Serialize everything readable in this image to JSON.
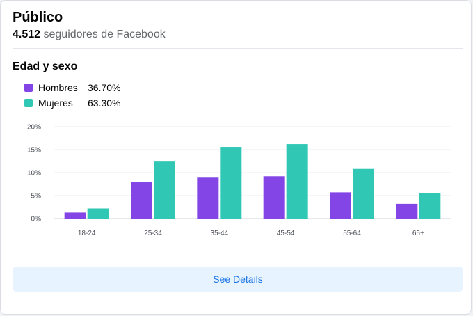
{
  "header": {
    "title": "Público",
    "follower_count": "4.512",
    "follower_suffix": "seguidores de Facebook"
  },
  "section": {
    "title": "Edad y sexo"
  },
  "legend": [
    {
      "label": "Hombres",
      "value": "36.70%",
      "color": "#8345e6"
    },
    {
      "label": "Mujeres",
      "value": "63.30%",
      "color": "#30c7b5"
    }
  ],
  "chart_data": {
    "type": "bar",
    "categories": [
      "18-24",
      "25-34",
      "35-44",
      "45-54",
      "55-64",
      "65+"
    ],
    "series": [
      {
        "name": "Hombres",
        "color": "#8345e6",
        "values": [
          1.3,
          7.9,
          8.9,
          9.2,
          5.7,
          3.2
        ]
      },
      {
        "name": "Mujeres",
        "color": "#30c7b5",
        "values": [
          2.2,
          12.4,
          15.6,
          16.2,
          10.8,
          5.5
        ]
      }
    ],
    "ylim": [
      0,
      20
    ],
    "yticks": [
      "0%",
      "5%",
      "10%",
      "15%",
      "20%"
    ],
    "ytick_values": [
      0,
      5,
      10,
      15,
      20
    ],
    "grid": true
  },
  "actions": {
    "details_label": "See Details"
  }
}
